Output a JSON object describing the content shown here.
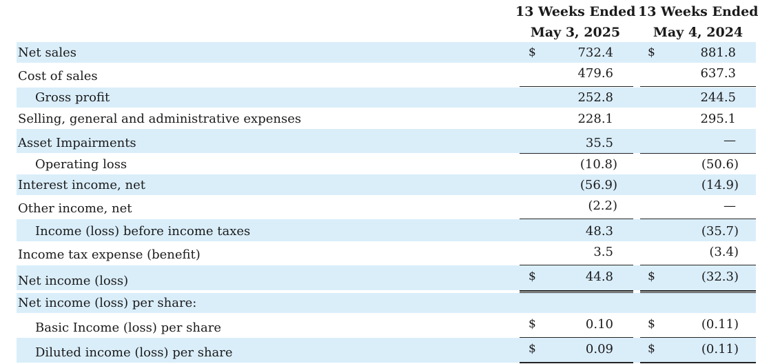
{
  "header": {
    "col_a_line1": "13 Weeks Ended",
    "col_a_line2": "May 3, 2025",
    "col_b_line1": "13 Weeks Ended",
    "col_b_line2": "May 4, 2024"
  },
  "rows": [
    {
      "label": "Net sales",
      "cur_a": "$",
      "val_a": "732.4",
      "cur_b": "$",
      "val_b": "881.8"
    },
    {
      "label": "Cost of sales",
      "val_a": "479.6",
      "val_b": "637.3"
    },
    {
      "label": "Gross profit",
      "val_a": "252.8",
      "val_b": "244.5"
    },
    {
      "label": "Selling, general and administrative expenses",
      "val_a": "228.1",
      "val_b": "295.1"
    },
    {
      "label": "Asset Impairments",
      "val_a": "35.5",
      "val_b": "—"
    },
    {
      "label": "Operating loss",
      "val_a": "(10.8)",
      "val_b": "(50.6)"
    },
    {
      "label": "Interest income, net",
      "val_a": "(56.9)",
      "val_b": "(14.9)"
    },
    {
      "label": "Other income, net",
      "val_a": "(2.2)",
      "val_b": "—"
    },
    {
      "label": "Income (loss) before income taxes",
      "val_a": "48.3",
      "val_b": "(35.7)"
    },
    {
      "label": "Income tax expense (benefit)",
      "val_a": "3.5",
      "val_b": "(3.4)"
    },
    {
      "label": "Net income (loss)",
      "cur_a": "$",
      "val_a": "44.8",
      "cur_b": "$",
      "val_b": "(32.3)"
    },
    {
      "label": "Net income (loss) per share:"
    },
    {
      "label": "Basic Income (loss) per share",
      "cur_a": "$",
      "val_a": "0.10",
      "cur_b": "$",
      "val_b": "(0.11)"
    },
    {
      "label": "Diluted income (loss) per share",
      "cur_a": "$",
      "val_a": "0.09",
      "cur_b": "$",
      "val_b": "(0.11)"
    }
  ]
}
